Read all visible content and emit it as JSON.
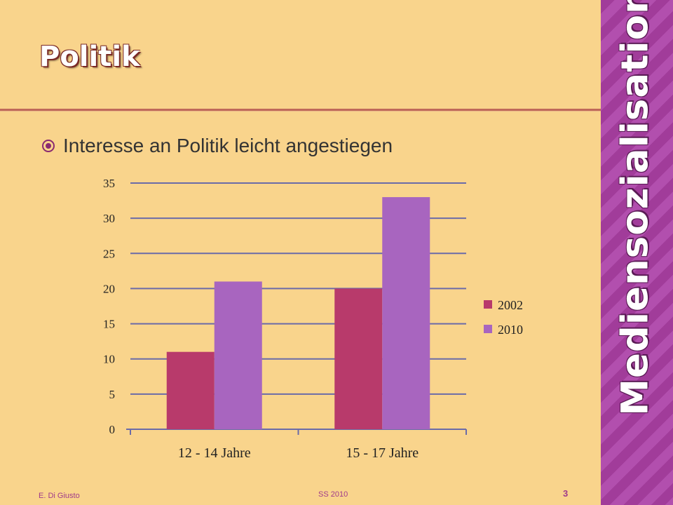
{
  "slide": {
    "title": "Politik",
    "side_title": "Mediensozialisation",
    "bullet": "Interesse an Politik leicht angestiegen",
    "footer_left": "E. Di Giusto",
    "footer_center": "SS 2010",
    "page_number": "3"
  },
  "colors": {
    "background": "#F9D48C",
    "accent": "#A13C9A",
    "series_2002": "#B83A6B",
    "series_2010": "#A865BF"
  },
  "chart_data": {
    "type": "bar",
    "categories": [
      "12 - 14 Jahre",
      "15 - 17 Jahre"
    ],
    "series": [
      {
        "name": "2002",
        "values": [
          11,
          20
        ],
        "color": "#B83A6B"
      },
      {
        "name": "2010",
        "values": [
          21,
          33
        ],
        "color": "#A865BF"
      }
    ],
    "ylim": [
      0,
      35
    ],
    "yticks": [
      0,
      5,
      10,
      15,
      20,
      25,
      30,
      35
    ],
    "grid": true,
    "legend": "right"
  }
}
